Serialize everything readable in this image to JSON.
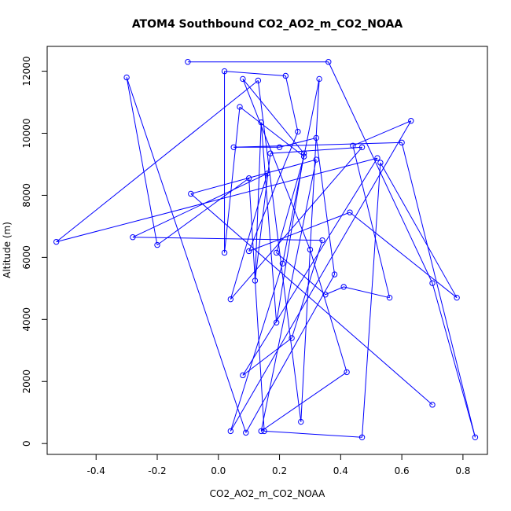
{
  "chart_data": {
    "type": "line",
    "title": "ATOM4 Southbound CO2_AO2_m_CO2_NOAA",
    "xlabel": "CO2_AO2_m_CO2_NOAA",
    "ylabel": "Altitude (m)",
    "xlim": [
      -0.56,
      0.88
    ],
    "ylim": [
      -350,
      12800
    ],
    "x_ticks": [
      -0.4,
      -0.2,
      0.0,
      0.2,
      0.4,
      0.6,
      0.8
    ],
    "x_tick_labels": [
      "-0.4",
      "-0.2",
      "0.0",
      "0.2",
      "0.4",
      "0.6",
      "0.8"
    ],
    "y_ticks": [
      0,
      2000,
      4000,
      6000,
      8000,
      10000,
      12000
    ],
    "y_tick_labels": [
      "0",
      "2000",
      "4000",
      "6000",
      "8000",
      "10000",
      "12000"
    ],
    "grid": false,
    "legend": "none",
    "series": [
      {
        "color": "#0000ff",
        "marker": "open-circle",
        "points": [
          [
            -0.1,
            12300
          ],
          [
            0.36,
            12300
          ],
          [
            0.7,
            5170
          ],
          [
            0.84,
            200
          ],
          [
            0.6,
            9700
          ],
          [
            0.05,
            9550
          ],
          [
            0.2,
            9550
          ],
          [
            0.32,
            9850
          ],
          [
            0.38,
            5450
          ],
          [
            0.09,
            350
          ],
          [
            -0.3,
            11800
          ],
          [
            -0.2,
            6400
          ],
          [
            0.1,
            8550
          ],
          [
            0.15,
            400
          ],
          [
            0.47,
            200
          ],
          [
            0.53,
            9050
          ],
          [
            0.78,
            4700
          ],
          [
            0.43,
            7450
          ],
          [
            0.1,
            6200
          ],
          [
            0.26,
            10050
          ],
          [
            0.22,
            11850
          ],
          [
            0.02,
            12000
          ],
          [
            0.02,
            6150
          ],
          [
            0.07,
            10850
          ],
          [
            0.28,
            9250
          ],
          [
            0.19,
            6150
          ],
          [
            0.35,
            4800
          ],
          [
            0.41,
            5050
          ],
          [
            0.56,
            4700
          ],
          [
            0.44,
            9600
          ],
          [
            0.63,
            10400
          ],
          [
            0.04,
            400
          ],
          [
            0.21,
            5800
          ],
          [
            0.33,
            11750
          ],
          [
            0.27,
            700
          ],
          [
            0.13,
            11700
          ],
          [
            -0.53,
            6500
          ],
          [
            0.52,
            9200
          ],
          [
            0.08,
            2200
          ],
          [
            0.24,
            3400
          ],
          [
            0.34,
            6550
          ],
          [
            -0.28,
            6650
          ],
          [
            0.16,
            8700
          ],
          [
            0.04,
            4650
          ],
          [
            0.47,
            9550
          ],
          [
            0.17,
            9350
          ],
          [
            0.12,
            5250
          ],
          [
            0.14,
            10350
          ],
          [
            0.19,
            3900
          ],
          [
            0.28,
            9350
          ],
          [
            0.08,
            11750
          ],
          [
            0.3,
            6250
          ],
          [
            0.42,
            2300
          ],
          [
            0.14,
            400
          ],
          [
            0.32,
            9150
          ],
          [
            -0.09,
            8050
          ],
          [
            0.7,
            1250
          ]
        ]
      }
    ]
  }
}
